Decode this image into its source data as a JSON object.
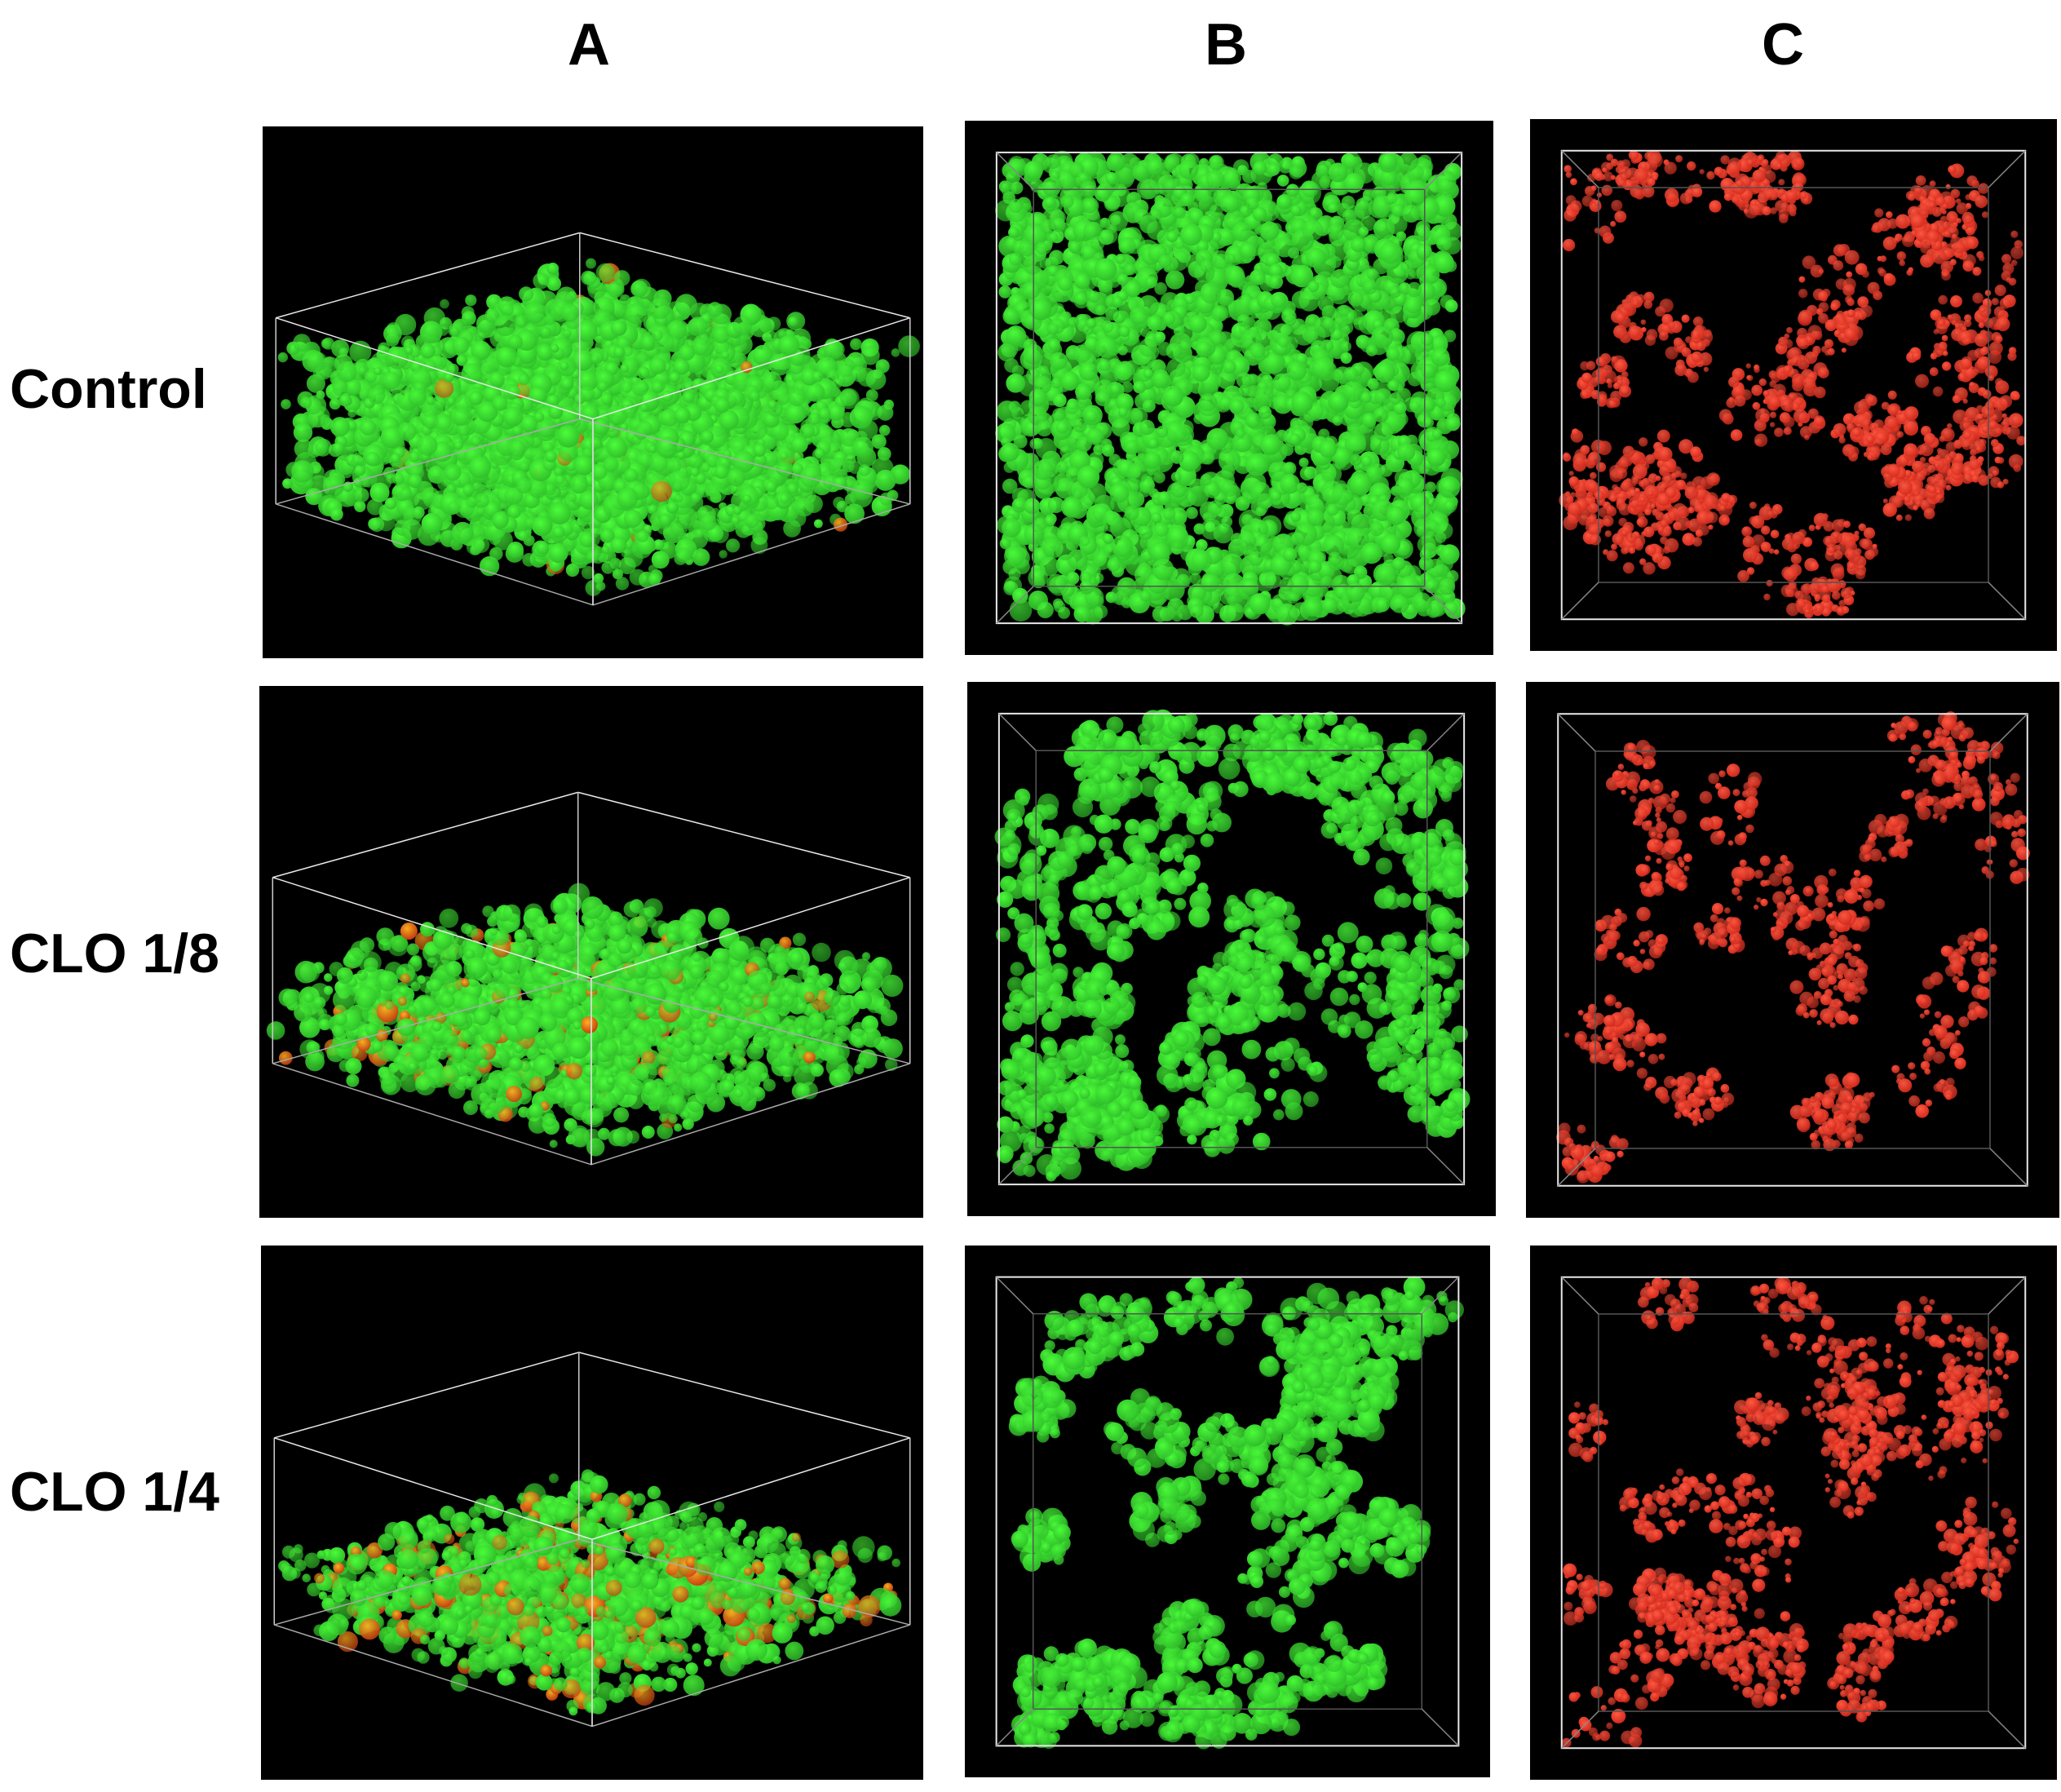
{
  "columns": [
    {
      "label": "A"
    },
    {
      "label": "B"
    },
    {
      "label": "C"
    }
  ],
  "rows": [
    {
      "label": "Control"
    },
    {
      "label": "CLO 1/8"
    },
    {
      "label": "CLO 1/4"
    }
  ],
  "colors": {
    "live_stain": "#2fbf2a",
    "live_bright": "#4cff3a",
    "dead_stain": "#d42a1c",
    "merged_orange": "#c8a020",
    "panel_bg": "#000000",
    "box_edge": "#e8e8e8"
  },
  "panels": [
    {
      "row": 0,
      "col": 0,
      "view": "3d-perspective",
      "stain": "merged",
      "coverage": 0.95,
      "dead_fraction": 0.01
    },
    {
      "row": 0,
      "col": 1,
      "view": "top-down",
      "stain": "live",
      "coverage": 0.92
    },
    {
      "row": 0,
      "col": 2,
      "view": "top-down",
      "stain": "dead",
      "coverage": 0.55
    },
    {
      "row": 1,
      "col": 0,
      "view": "3d-perspective",
      "stain": "merged",
      "coverage": 0.6,
      "dead_fraction": 0.08
    },
    {
      "row": 1,
      "col": 1,
      "view": "top-down",
      "stain": "live",
      "coverage": 0.55
    },
    {
      "row": 1,
      "col": 2,
      "view": "top-down",
      "stain": "dead",
      "coverage": 0.25
    },
    {
      "row": 2,
      "col": 0,
      "view": "3d-perspective",
      "stain": "merged",
      "coverage": 0.45,
      "dead_fraction": 0.15
    },
    {
      "row": 2,
      "col": 1,
      "view": "top-down",
      "stain": "live",
      "coverage": 0.4
    },
    {
      "row": 2,
      "col": 2,
      "view": "top-down",
      "stain": "dead",
      "coverage": 0.4
    }
  ]
}
